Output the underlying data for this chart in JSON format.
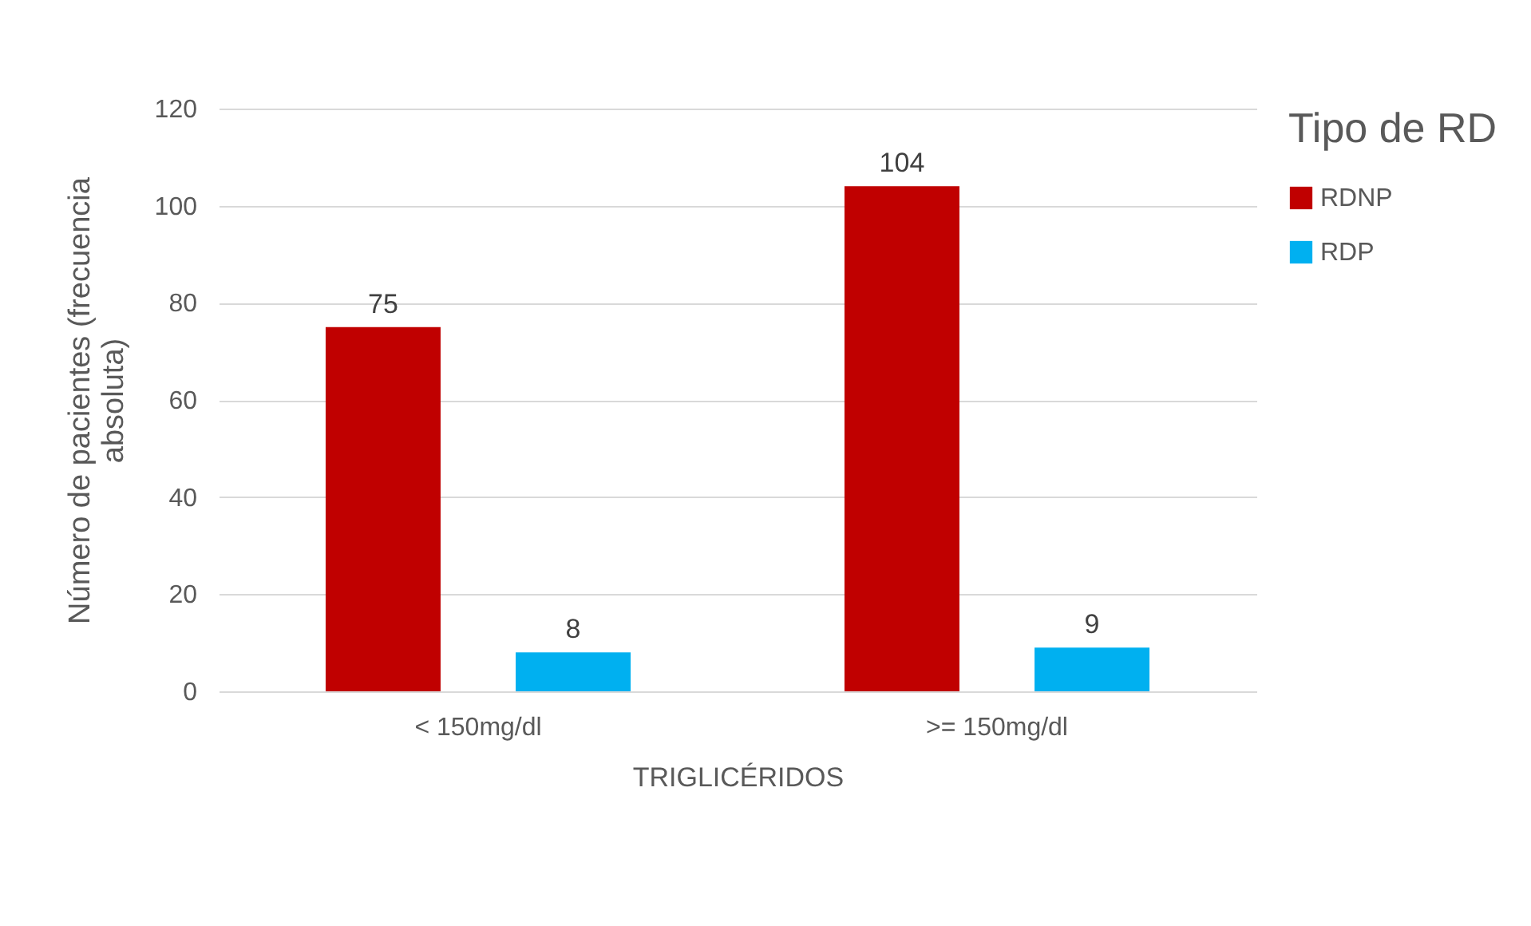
{
  "chart_data": {
    "type": "bar",
    "xlabel": "TRIGLICÉRIDOS",
    "ylabel": "Número de pacientes (frecuencia absoluta)",
    "legend_title": "Tipo de RD",
    "categories": [
      "< 150mg/dl",
      ">= 150mg/dl"
    ],
    "series": [
      {
        "name": "RDNP",
        "color": "#c00000",
        "values": [
          75,
          104
        ]
      },
      {
        "name": "RDP",
        "color": "#00b0f0",
        "values": [
          8,
          9
        ]
      }
    ],
    "ylim": [
      0,
      120
    ],
    "yticks": [
      0,
      20,
      40,
      60,
      80,
      100,
      120
    ],
    "grid": "y",
    "legend": "right",
    "data_labels": true
  }
}
